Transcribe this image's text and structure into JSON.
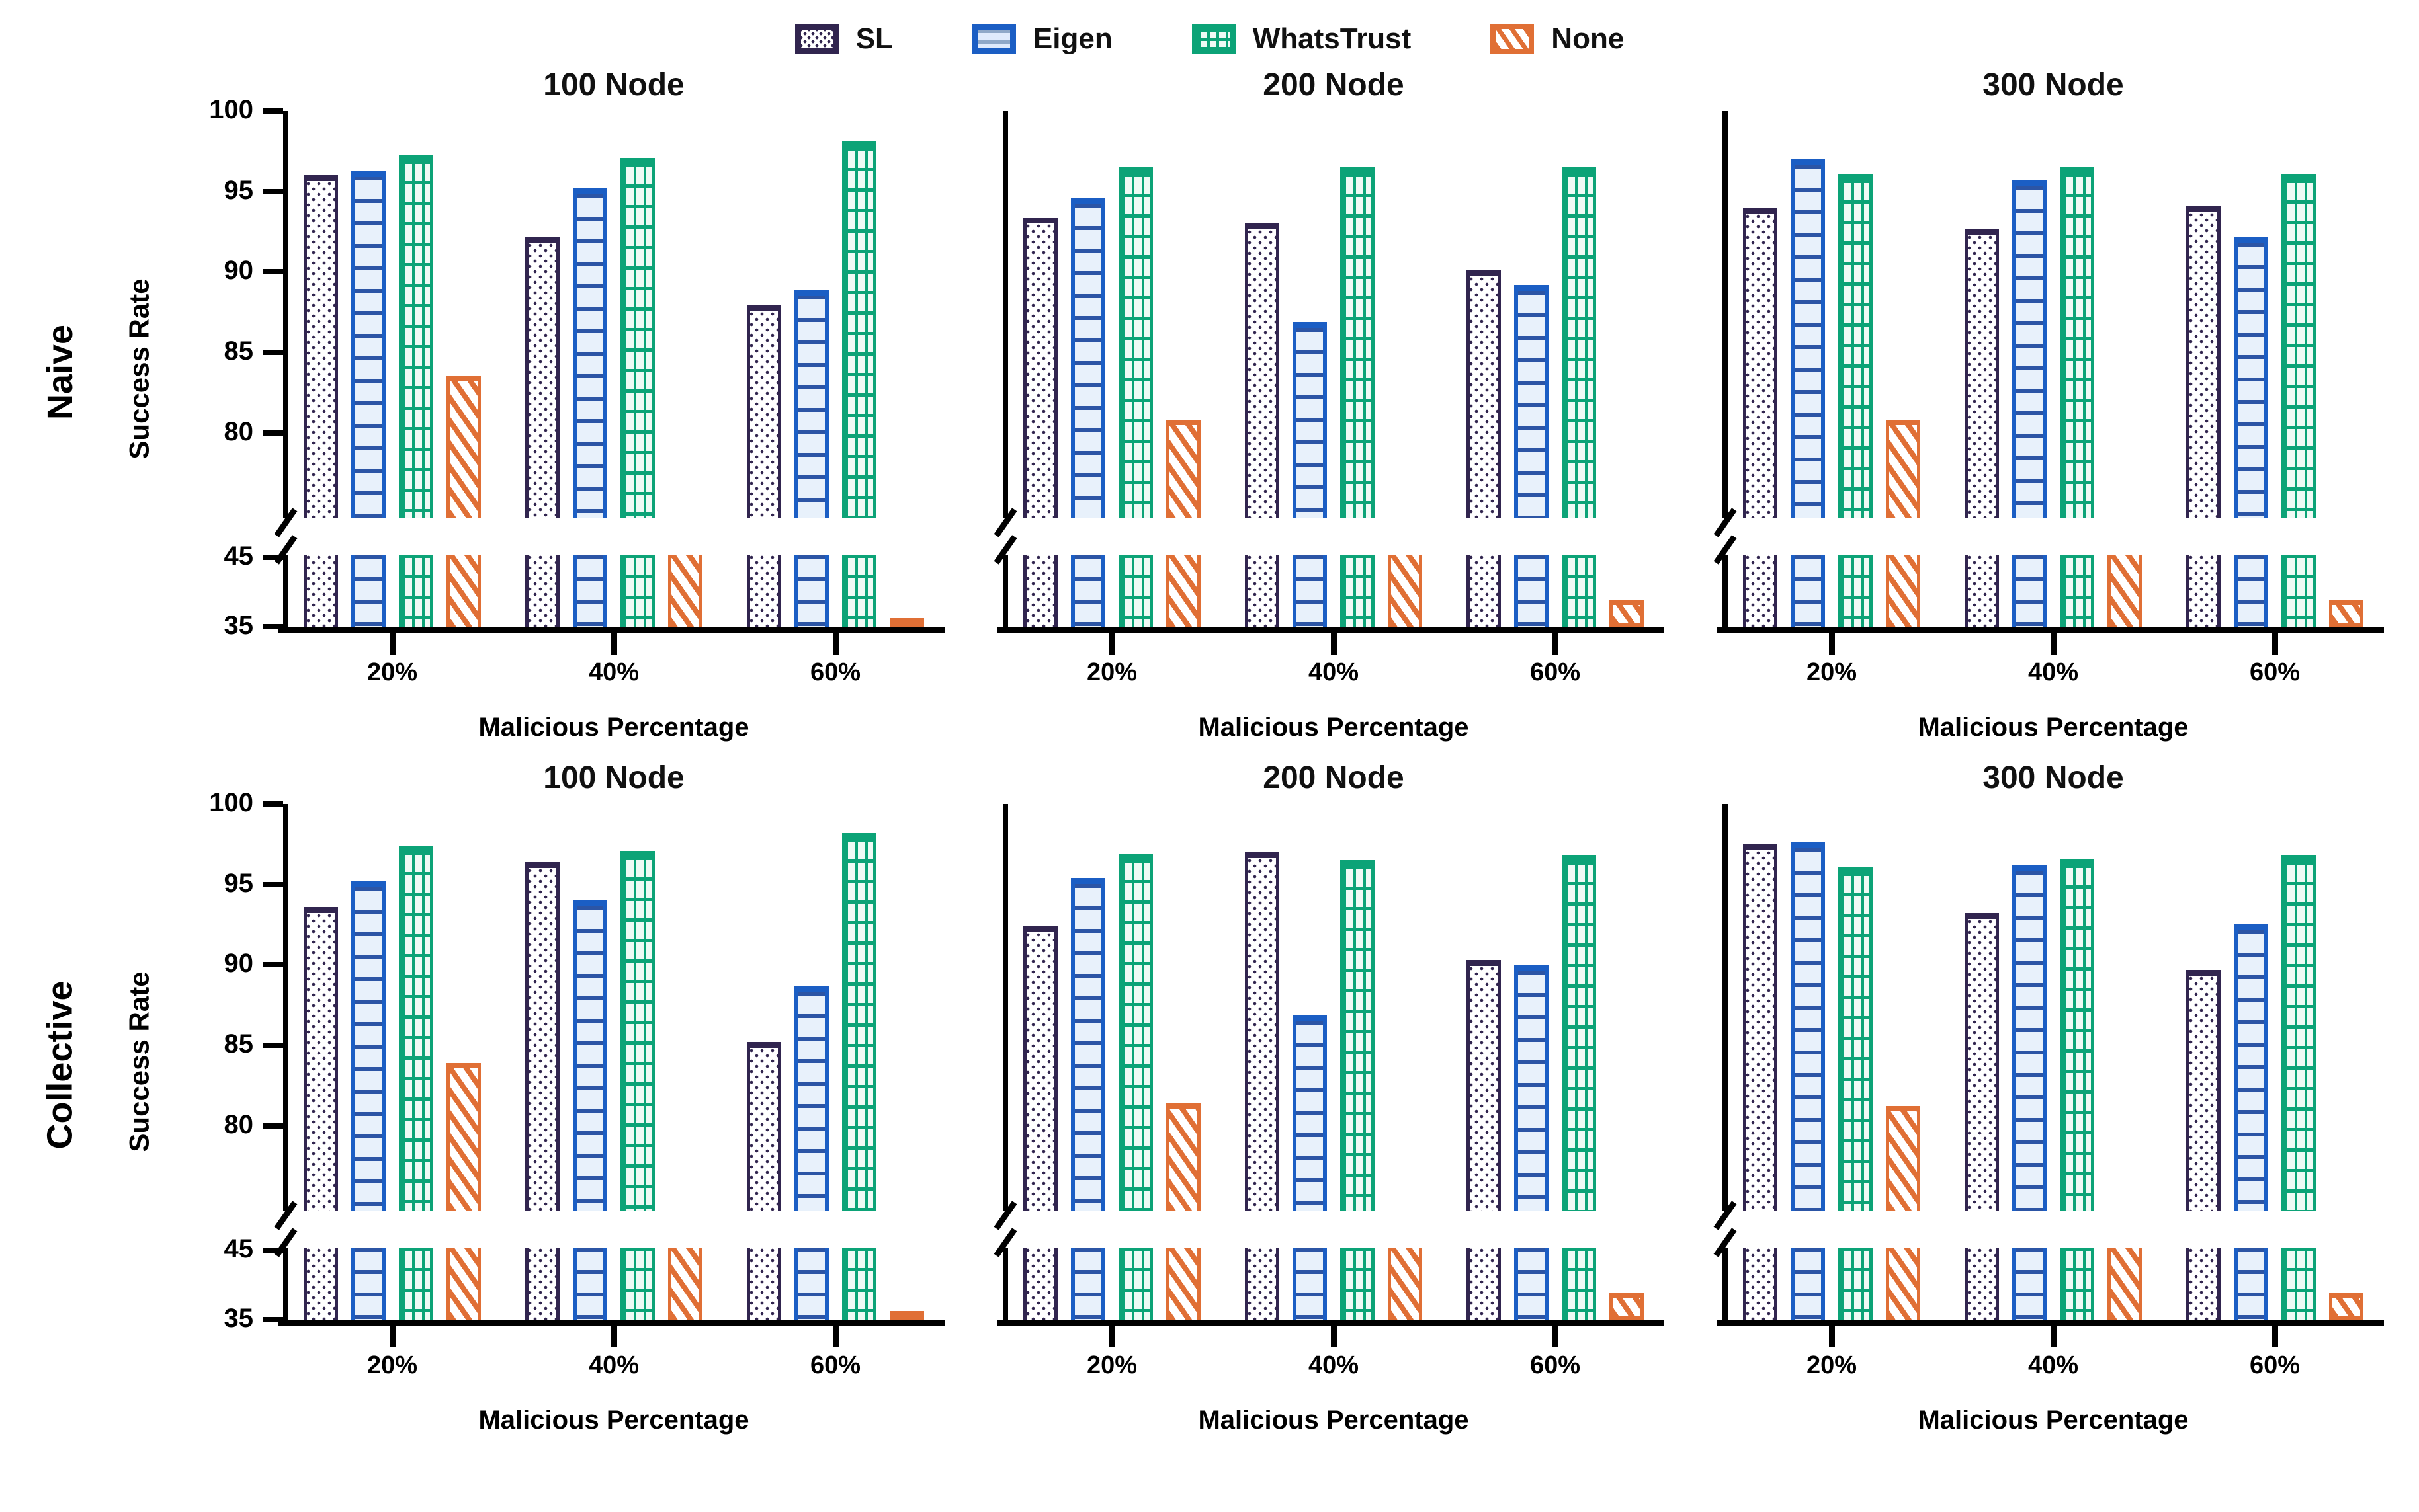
{
  "figure": {
    "background": "#ffffff"
  },
  "legend": {
    "items": [
      {
        "label": "SL",
        "color": "#31254f",
        "pattern": "dots"
      },
      {
        "label": "Eigen",
        "color": "#1b5ec4",
        "pattern": "horizontal-lines"
      },
      {
        "label": "WhatsTrust",
        "color": "#0ca377",
        "pattern": "grid"
      },
      {
        "label": "None",
        "color": "#e06f35",
        "pattern": "diagonal-hatch"
      }
    ]
  },
  "rows": [
    {
      "label": "Naive"
    },
    {
      "label": "Collective"
    }
  ],
  "axis": {
    "ylabel": "Success Rate",
    "xlabel": "Malicious Percentage",
    "y_upper_ticks": [
      100,
      95,
      90,
      85,
      80
    ],
    "y_lower_ticks": [
      45,
      35
    ],
    "categories": [
      "20%",
      "40%",
      "60%"
    ],
    "broken_axis": true,
    "break_between": [
      46,
      77
    ]
  },
  "note": "Bars that pass through the axis break are drawn clipped; 'None' bars at 40% malicious end at the break (value shown as 45.4).",
  "chart_data": [
    {
      "type": "bar",
      "row": "Naive",
      "title": "100 Node",
      "xlabel": "Malicious Percentage",
      "ylabel": "Success Rate",
      "categories": [
        "20%",
        "40%",
        "60%"
      ],
      "series": [
        {
          "name": "SL",
          "values": [
            96.0,
            92.2,
            87.9
          ]
        },
        {
          "name": "Eigen",
          "values": [
            96.3,
            95.2,
            88.9
          ]
        },
        {
          "name": "WhatsTrust",
          "values": [
            97.3,
            97.1,
            98.1
          ]
        },
        {
          "name": "None",
          "values": [
            83.5,
            45.4,
            35.4
          ]
        }
      ]
    },
    {
      "type": "bar",
      "row": "Naive",
      "title": "200 Node",
      "xlabel": "Malicious Percentage",
      "ylabel": "Success Rate",
      "categories": [
        "20%",
        "40%",
        "60%"
      ],
      "series": [
        {
          "name": "SL",
          "values": [
            93.4,
            93.0,
            90.1
          ]
        },
        {
          "name": "Eigen",
          "values": [
            94.6,
            86.9,
            89.2
          ]
        },
        {
          "name": "WhatsTrust",
          "values": [
            96.5,
            96.5,
            96.5
          ]
        },
        {
          "name": "None",
          "values": [
            80.8,
            45.4,
            38.9
          ]
        }
      ]
    },
    {
      "type": "bar",
      "row": "Naive",
      "title": "300 Node",
      "xlabel": "Malicious Percentage",
      "ylabel": "Success Rate",
      "categories": [
        "20%",
        "40%",
        "60%"
      ],
      "series": [
        {
          "name": "SL",
          "values": [
            94.0,
            92.7,
            94.1
          ]
        },
        {
          "name": "Eigen",
          "values": [
            97.0,
            95.7,
            92.2
          ]
        },
        {
          "name": "WhatsTrust",
          "values": [
            96.1,
            96.5,
            96.1
          ]
        },
        {
          "name": "None",
          "values": [
            80.8,
            45.4,
            38.9
          ]
        }
      ]
    },
    {
      "type": "bar",
      "row": "Collective",
      "title": "100 Node",
      "xlabel": "Malicious Percentage",
      "ylabel": "Success Rate",
      "categories": [
        "20%",
        "40%",
        "60%"
      ],
      "series": [
        {
          "name": "SL",
          "values": [
            93.6,
            96.4,
            85.2
          ]
        },
        {
          "name": "Eigen",
          "values": [
            95.2,
            94.0,
            88.7
          ]
        },
        {
          "name": "WhatsTrust",
          "values": [
            97.4,
            97.1,
            98.2
          ]
        },
        {
          "name": "None",
          "values": [
            83.9,
            45.4,
            35.4
          ]
        }
      ]
    },
    {
      "type": "bar",
      "row": "Collective",
      "title": "200 Node",
      "xlabel": "Malicious Percentage",
      "ylabel": "Success Rate",
      "categories": [
        "20%",
        "40%",
        "60%"
      ],
      "series": [
        {
          "name": "SL",
          "values": [
            92.4,
            97.0,
            90.3
          ]
        },
        {
          "name": "Eigen",
          "values": [
            95.4,
            86.9,
            90.0
          ]
        },
        {
          "name": "WhatsTrust",
          "values": [
            96.9,
            96.5,
            96.8
          ]
        },
        {
          "name": "None",
          "values": [
            81.4,
            45.4,
            38.9
          ]
        }
      ]
    },
    {
      "type": "bar",
      "row": "Collective",
      "title": "300 Node",
      "xlabel": "Malicious Percentage",
      "ylabel": "Success Rate",
      "categories": [
        "20%",
        "40%",
        "60%"
      ],
      "series": [
        {
          "name": "SL",
          "values": [
            97.5,
            93.2,
            89.7
          ]
        },
        {
          "name": "Eigen",
          "values": [
            97.6,
            96.2,
            92.5
          ]
        },
        {
          "name": "WhatsTrust",
          "values": [
            96.1,
            96.6,
            96.8
          ]
        },
        {
          "name": "None",
          "values": [
            81.2,
            45.4,
            38.9
          ]
        }
      ]
    }
  ]
}
